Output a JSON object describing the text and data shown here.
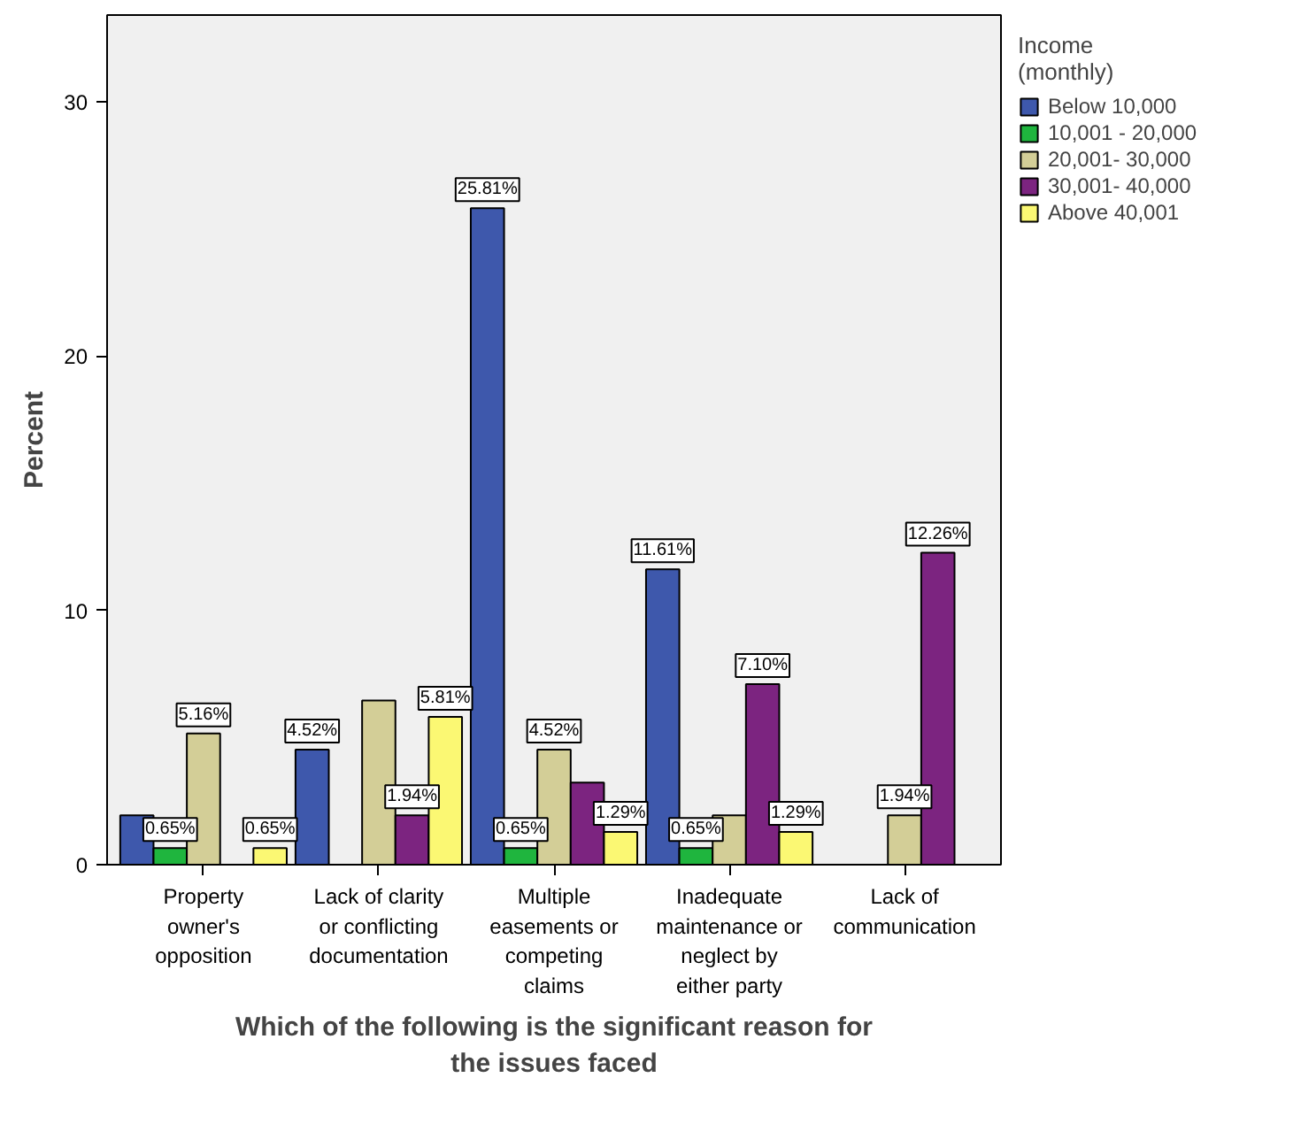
{
  "chart_data": {
    "type": "bar",
    "xlabel": "Which of the following is the significant reason for the issues faced",
    "ylabel": "Percent",
    "legend_title": "Income (monthly)",
    "categories": [
      "Property owner's opposition",
      "Lack of clarity or conflicting documentation",
      "Multiple easements or competing claims",
      "Inadequate maintenance or neglect by either party",
      "Lack of communication"
    ],
    "series": [
      {
        "name": "Below 10,000",
        "color": "#3e58ac",
        "values": [
          1.94,
          4.52,
          25.81,
          11.61,
          null
        ],
        "value_labels": [
          null,
          "4.52%",
          "25.81%",
          "11.61%",
          null
        ]
      },
      {
        "name": "10,001 - 20,000",
        "color": "#1fb53e",
        "values": [
          0.65,
          null,
          0.65,
          0.65,
          null
        ],
        "value_labels": [
          "0.65%",
          null,
          "0.65%",
          "0.65%",
          null
        ]
      },
      {
        "name": "20,001- 30,000",
        "color": "#d3ce97",
        "values": [
          5.16,
          6.45,
          4.52,
          1.94,
          1.94
        ],
        "value_labels": [
          "5.16%",
          null,
          "4.52%",
          null,
          "1.94%"
        ]
      },
      {
        "name": "30,001- 40,000",
        "color": "#7c2480",
        "values": [
          null,
          1.94,
          3.23,
          7.1,
          12.26
        ],
        "value_labels": [
          null,
          "1.94%",
          null,
          "7.10%",
          "12.26%"
        ]
      },
      {
        "name": "Above 40,001",
        "color": "#fbf873",
        "values": [
          0.65,
          5.81,
          1.29,
          1.29,
          null
        ],
        "value_labels": [
          "0.65%",
          "5.81%",
          "1.29%",
          "1.29%",
          null
        ]
      }
    ],
    "ylim": [
      0,
      33.4
    ],
    "yticks": [
      0,
      10,
      20,
      30
    ],
    "grid": false,
    "legend": "right"
  }
}
